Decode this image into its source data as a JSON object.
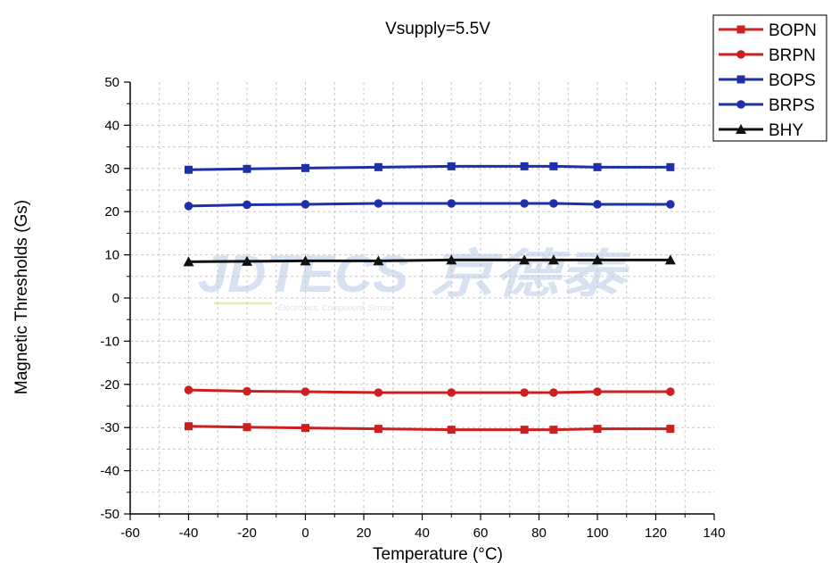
{
  "chart_data": {
    "type": "line",
    "title": "Vsupply=5.5V",
    "xlabel": "Temperature (°C)",
    "ylabel": "Magnetic Thresholds (Gs)",
    "xlim": [
      -60,
      140
    ],
    "ylim": [
      -50,
      50
    ],
    "xticks": [
      -60,
      -40,
      -20,
      0,
      20,
      40,
      60,
      80,
      100,
      120,
      140
    ],
    "yticks": [
      -50,
      -40,
      -30,
      -20,
      -10,
      0,
      10,
      20,
      30,
      40,
      50
    ],
    "grid": true,
    "legend_position": "top-right",
    "x": [
      -40,
      -20,
      0,
      25,
      50,
      75,
      85,
      100,
      125
    ],
    "series": [
      {
        "name": "BOPN",
        "color": "#cc1f1f",
        "marker": "square",
        "values": [
          -29.7,
          -29.9,
          -30.1,
          -30.3,
          -30.5,
          -30.5,
          -30.5,
          -30.3,
          -30.3
        ]
      },
      {
        "name": "BRPN",
        "color": "#cc1f1f",
        "marker": "circle",
        "values": [
          -21.3,
          -21.6,
          -21.7,
          -21.9,
          -21.9,
          -21.9,
          -21.9,
          -21.7,
          -21.7
        ]
      },
      {
        "name": "BOPS",
        "color": "#1f2fa8",
        "marker": "square",
        "values": [
          29.7,
          29.9,
          30.1,
          30.3,
          30.5,
          30.5,
          30.5,
          30.3,
          30.3
        ]
      },
      {
        "name": "BRPS",
        "color": "#1f2fa8",
        "marker": "circle",
        "values": [
          21.3,
          21.6,
          21.7,
          21.9,
          21.9,
          21.9,
          21.9,
          21.7,
          21.7
        ]
      },
      {
        "name": "BHY",
        "color": "#111111",
        "marker": "triangle",
        "values": [
          8.4,
          8.5,
          8.6,
          8.6,
          8.8,
          8.8,
          8.8,
          8.8,
          8.8
        ]
      }
    ]
  },
  "watermark": {
    "main": "JDTECS 京德泰",
    "sub": "Electronics, Component, Sensor"
  }
}
